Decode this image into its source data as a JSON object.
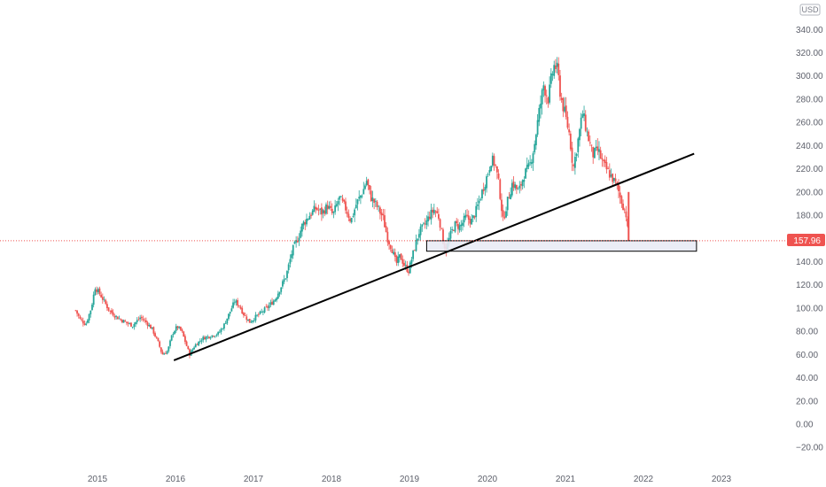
{
  "currency_label": "USD",
  "last_price_label": "157.96",
  "chart_data": {
    "type": "candlestick",
    "ylim": [
      -30,
      355
    ],
    "y_ticks": [
      "340.00",
      "320.00",
      "300.00",
      "280.00",
      "260.00",
      "240.00",
      "220.00",
      "200.00",
      "180.00",
      "160.00",
      "140.00",
      "120.00",
      "100.00",
      "80.00",
      "60.00",
      "40.00",
      "20.00",
      "0.00",
      "−20.00"
    ],
    "y_tick_values": [
      340,
      320,
      300,
      280,
      260,
      240,
      220,
      200,
      180,
      160,
      140,
      120,
      100,
      80,
      60,
      40,
      20,
      0,
      -20
    ],
    "x_ticks": [
      "2015",
      "2016",
      "2017",
      "2018",
      "2019",
      "2020",
      "2021",
      "2022",
      "2023"
    ],
    "x_tick_values": [
      2015,
      2016,
      2017,
      2018,
      2019,
      2020,
      2021,
      2022,
      2023
    ],
    "xlim": [
      2014.3,
      2023.6
    ],
    "last_price": 157.96,
    "colors": {
      "up": "#26a69a",
      "down": "#ef5350",
      "trendline": "#000000",
      "zone_fill": "#e9ebf5",
      "zone_border": "#000000",
      "price_line": "#ef5350"
    },
    "price_path": [
      [
        2014.72,
        98
      ],
      [
        2014.78,
        90
      ],
      [
        2014.85,
        86
      ],
      [
        2014.92,
        100
      ],
      [
        2014.97,
        118
      ],
      [
        2015.05,
        110
      ],
      [
        2015.15,
        98
      ],
      [
        2015.25,
        92
      ],
      [
        2015.35,
        88
      ],
      [
        2015.45,
        85
      ],
      [
        2015.55,
        92
      ],
      [
        2015.62,
        88
      ],
      [
        2015.7,
        82
      ],
      [
        2015.78,
        70
      ],
      [
        2015.83,
        60
      ],
      [
        2015.9,
        63
      ],
      [
        2015.96,
        78
      ],
      [
        2016.02,
        84
      ],
      [
        2016.08,
        80
      ],
      [
        2016.13,
        70
      ],
      [
        2016.18,
        60
      ],
      [
        2016.25,
        68
      ],
      [
        2016.35,
        74
      ],
      [
        2016.45,
        76
      ],
      [
        2016.55,
        78
      ],
      [
        2016.62,
        85
      ],
      [
        2016.7,
        97
      ],
      [
        2016.76,
        106
      ],
      [
        2016.82,
        102
      ],
      [
        2016.88,
        94
      ],
      [
        2016.95,
        88
      ],
      [
        2017.02,
        92
      ],
      [
        2017.1,
        96
      ],
      [
        2017.2,
        102
      ],
      [
        2017.28,
        108
      ],
      [
        2017.35,
        118
      ],
      [
        2017.42,
        128
      ],
      [
        2017.5,
        150
      ],
      [
        2017.57,
        160
      ],
      [
        2017.63,
        172
      ],
      [
        2017.72,
        180
      ],
      [
        2017.8,
        186
      ],
      [
        2017.88,
        182
      ],
      [
        2017.95,
        188
      ],
      [
        2018.02,
        180
      ],
      [
        2018.1,
        195
      ],
      [
        2018.18,
        186
      ],
      [
        2018.25,
        175
      ],
      [
        2018.32,
        190
      ],
      [
        2018.4,
        200
      ],
      [
        2018.45,
        210
      ],
      [
        2018.5,
        196
      ],
      [
        2018.58,
        188
      ],
      [
        2018.66,
        178
      ],
      [
        2018.72,
        160
      ],
      [
        2018.78,
        150
      ],
      [
        2018.83,
        138
      ],
      [
        2018.88,
        145
      ],
      [
        2018.94,
        136
      ],
      [
        2018.99,
        132
      ],
      [
        2019.05,
        148
      ],
      [
        2019.12,
        165
      ],
      [
        2019.2,
        172
      ],
      [
        2019.26,
        180
      ],
      [
        2019.32,
        185
      ],
      [
        2019.38,
        178
      ],
      [
        2019.43,
        158
      ],
      [
        2019.47,
        150
      ],
      [
        2019.52,
        162
      ],
      [
        2019.58,
        172
      ],
      [
        2019.65,
        170
      ],
      [
        2019.72,
        178
      ],
      [
        2019.8,
        175
      ],
      [
        2019.86,
        185
      ],
      [
        2019.93,
        200
      ],
      [
        2020.0,
        215
      ],
      [
        2020.05,
        228
      ],
      [
        2020.1,
        224
      ],
      [
        2020.15,
        205
      ],
      [
        2020.2,
        175
      ],
      [
        2020.25,
        190
      ],
      [
        2020.32,
        208
      ],
      [
        2020.4,
        200
      ],
      [
        2020.47,
        215
      ],
      [
        2020.54,
        222
      ],
      [
        2020.6,
        240
      ],
      [
        2020.66,
        268
      ],
      [
        2020.72,
        292
      ],
      [
        2020.78,
        280
      ],
      [
        2020.82,
        298
      ],
      [
        2020.86,
        310
      ],
      [
        2020.9,
        304
      ],
      [
        2020.94,
        282
      ],
      [
        2020.99,
        268
      ],
      [
        2021.05,
        250
      ],
      [
        2021.1,
        220
      ],
      [
        2021.15,
        240
      ],
      [
        2021.22,
        268
      ],
      [
        2021.28,
        250
      ],
      [
        2021.35,
        232
      ],
      [
        2021.42,
        236
      ],
      [
        2021.48,
        224
      ],
      [
        2021.54,
        218
      ],
      [
        2021.6,
        212
      ],
      [
        2021.66,
        205
      ],
      [
        2021.7,
        196
      ],
      [
        2021.74,
        188
      ],
      [
        2021.78,
        180
      ],
      [
        2021.81,
        157.96
      ]
    ],
    "trendlines": [
      {
        "x0": 2015.98,
        "y0": 55,
        "x1": 2022.65,
        "y1": 233
      }
    ],
    "zones": [
      {
        "x0": 2019.22,
        "x1": 2022.68,
        "y_low": 149,
        "y_high": 158
      }
    ]
  }
}
